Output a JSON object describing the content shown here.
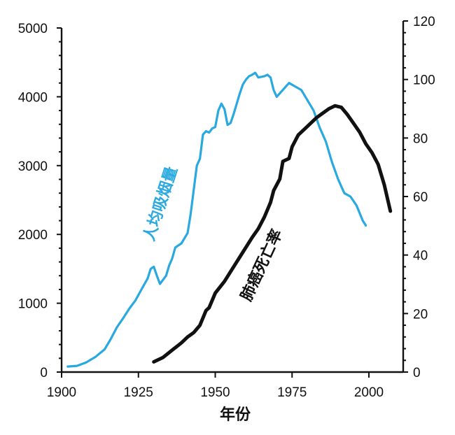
{
  "chart_data": {
    "type": "line",
    "xlabel": "年份",
    "x_ticks": [
      "1900",
      "1925",
      "1950",
      "1975",
      "2000"
    ],
    "xlim": [
      1900,
      2008
    ],
    "y_left": {
      "ticks": [
        "0",
        "1000",
        "2000",
        "3000",
        "4000",
        "5000"
      ],
      "lim": [
        0,
        5000
      ]
    },
    "y_right": {
      "ticks": [
        "0",
        "20",
        "40",
        "60",
        "80",
        "100",
        "120"
      ],
      "lim": [
        0,
        120
      ]
    },
    "series": [
      {
        "name": "人均吸烟量",
        "axis": "left",
        "color": "#29a9e0",
        "points": [
          [
            1902,
            80
          ],
          [
            1905,
            90
          ],
          [
            1908,
            140
          ],
          [
            1911,
            220
          ],
          [
            1914,
            330
          ],
          [
            1916,
            480
          ],
          [
            1918,
            650
          ],
          [
            1920,
            780
          ],
          [
            1922,
            920
          ],
          [
            1924,
            1040
          ],
          [
            1926,
            1200
          ],
          [
            1928,
            1360
          ],
          [
            1929,
            1500
          ],
          [
            1930,
            1530
          ],
          [
            1931,
            1400
          ],
          [
            1932,
            1280
          ],
          [
            1934,
            1400
          ],
          [
            1935,
            1550
          ],
          [
            1936,
            1650
          ],
          [
            1937,
            1810
          ],
          [
            1939,
            1870
          ],
          [
            1941,
            2020
          ],
          [
            1942,
            2300
          ],
          [
            1943,
            2650
          ],
          [
            1944,
            3000
          ],
          [
            1945,
            3100
          ],
          [
            1946,
            3450
          ],
          [
            1947,
            3500
          ],
          [
            1948,
            3480
          ],
          [
            1949,
            3540
          ],
          [
            1950,
            3560
          ],
          [
            1951,
            3800
          ],
          [
            1952,
            3900
          ],
          [
            1953,
            3820
          ],
          [
            1954,
            3590
          ],
          [
            1955,
            3620
          ],
          [
            1956,
            3750
          ],
          [
            1957,
            3900
          ],
          [
            1958,
            4050
          ],
          [
            1959,
            4180
          ],
          [
            1960,
            4250
          ],
          [
            1961,
            4300
          ],
          [
            1962,
            4320
          ],
          [
            1963,
            4350
          ],
          [
            1964,
            4280
          ],
          [
            1966,
            4300
          ],
          [
            1967,
            4320
          ],
          [
            1968,
            4280
          ],
          [
            1969,
            4100
          ],
          [
            1970,
            4000
          ],
          [
            1972,
            4100
          ],
          [
            1973,
            4150
          ],
          [
            1974,
            4200
          ],
          [
            1976,
            4150
          ],
          [
            1978,
            4100
          ],
          [
            1980,
            3950
          ],
          [
            1982,
            3800
          ],
          [
            1984,
            3550
          ],
          [
            1986,
            3350
          ],
          [
            1988,
            3050
          ],
          [
            1990,
            2800
          ],
          [
            1992,
            2600
          ],
          [
            1994,
            2550
          ],
          [
            1996,
            2420
          ],
          [
            1998,
            2200
          ],
          [
            1999,
            2130
          ]
        ]
      },
      {
        "name": "肺癌死亡率",
        "axis": "right",
        "color": "#111111",
        "points": [
          [
            1930,
            3.5
          ],
          [
            1933,
            5
          ],
          [
            1936,
            7.5
          ],
          [
            1939,
            10
          ],
          [
            1941,
            12
          ],
          [
            1943,
            13.5
          ],
          [
            1945,
            16
          ],
          [
            1947,
            21
          ],
          [
            1948,
            22
          ],
          [
            1950,
            27
          ],
          [
            1953,
            31
          ],
          [
            1956,
            36
          ],
          [
            1959,
            41
          ],
          [
            1962,
            46
          ],
          [
            1964,
            49
          ],
          [
            1966,
            53
          ],
          [
            1968,
            58
          ],
          [
            1969,
            62
          ],
          [
            1971,
            66
          ],
          [
            1972,
            72
          ],
          [
            1974,
            73
          ],
          [
            1975,
            77
          ],
          [
            1977,
            81
          ],
          [
            1979,
            83
          ],
          [
            1981,
            85
          ],
          [
            1983,
            87
          ],
          [
            1985,
            88.5
          ],
          [
            1987,
            90
          ],
          [
            1989,
            91
          ],
          [
            1991,
            90.5
          ],
          [
            1993,
            88
          ],
          [
            1995,
            85
          ],
          [
            1997,
            82
          ],
          [
            1999,
            78
          ],
          [
            2001,
            75
          ],
          [
            2003,
            71
          ],
          [
            2005,
            64
          ],
          [
            2007,
            55
          ]
        ]
      }
    ]
  }
}
